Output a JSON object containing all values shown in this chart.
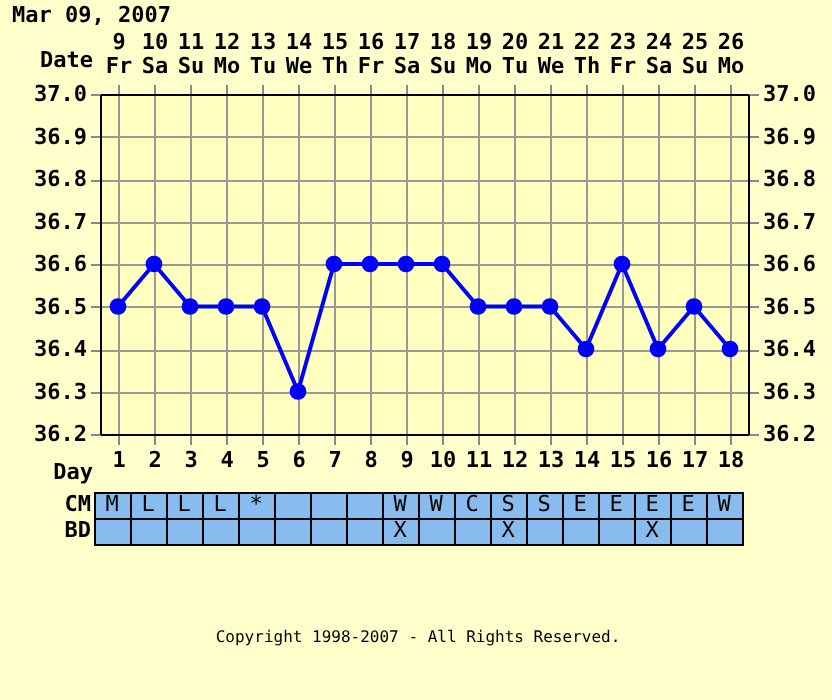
{
  "chart_data": [
    {
      "type": "line",
      "title": "Mar 09, 2007",
      "x": [
        1,
        2,
        3,
        4,
        5,
        6,
        7,
        8,
        9,
        10,
        11,
        12,
        13,
        14,
        15,
        16,
        17,
        18
      ],
      "values": [
        36.5,
        36.6,
        36.5,
        36.5,
        36.5,
        36.3,
        36.6,
        36.6,
        36.6,
        36.6,
        36.5,
        36.5,
        36.5,
        36.4,
        36.6,
        36.4,
        36.5,
        36.4
      ],
      "color": "#0000ff",
      "marker": "circle",
      "grid": true,
      "xlabel": "Day",
      "xlim": [
        0.5,
        18.5
      ],
      "xticks": [
        1,
        2,
        3,
        4,
        5,
        6,
        7,
        8,
        9,
        10,
        11,
        12,
        13,
        14,
        15,
        16,
        17,
        18
      ],
      "x2label": "Date",
      "x2lim": [
        "2007-03-08T12:00",
        "2007-03-26T12:00"
      ],
      "x2ticks": [
        {
          "value": "2007-03-09",
          "label": "9\nFr"
        },
        {
          "value": "2007-03-10",
          "label": "10\nSa"
        },
        {
          "value": "2007-03-11",
          "label": "11\nSu"
        },
        {
          "value": "2007-03-12",
          "label": "12\nMo"
        },
        {
          "value": "2007-03-13",
          "label": "13\nTu"
        },
        {
          "value": "2007-03-14",
          "label": "14\nWe"
        },
        {
          "value": "2007-03-15",
          "label": "15\nTh"
        },
        {
          "value": "2007-03-16",
          "label": "16\nFr"
        },
        {
          "value": "2007-03-17",
          "label": "17\nSa"
        },
        {
          "value": "2007-03-18",
          "label": "18\nSu"
        },
        {
          "value": "2007-03-19",
          "label": "19\nMo"
        },
        {
          "value": "2007-03-20",
          "label": "20\nTu"
        },
        {
          "value": "2007-03-21",
          "label": "21\nWe"
        },
        {
          "value": "2007-03-22",
          "label": "22\nTh"
        },
        {
          "value": "2007-03-23",
          "label": "23\nFr"
        },
        {
          "value": "2007-03-24",
          "label": "24\nSa"
        },
        {
          "value": "2007-03-25",
          "label": "25\nSu"
        },
        {
          "value": "2007-03-26",
          "label": "26\nMo"
        }
      ],
      "ylim": [
        36.2,
        37.0
      ],
      "yticks": [
        {
          "value": 36.2,
          "label": "36.2"
        },
        36.3,
        36.4,
        36.5,
        36.6,
        36.7,
        36.8,
        36.9,
        {
          "value": 37,
          "label": "37.0"
        }
      ],
      "y2lim": [
        36.2,
        37.0
      ],
      "y2ticks": [
        {
          "value": 36.2,
          "label": "36.2"
        },
        36.3,
        36.4,
        36.5,
        36.6,
        36.7,
        36.8,
        36.9,
        {
          "value": 37,
          "label": "37.0"
        }
      ]
    },
    {
      "type": "heatmap",
      "tick_labels": "y",
      "categories": [
        null,
        null,
        null,
        null,
        null,
        null,
        null,
        null,
        null,
        null,
        null,
        null,
        null,
        null,
        null,
        null,
        null,
        null
      ],
      "y_categories": [
        "CM",
        "BD"
      ],
      "cells": [
        [
          null,
          null,
          null,
          null,
          null,
          null,
          null,
          null,
          null,
          null,
          null,
          null,
          null,
          null,
          null,
          null,
          null,
          null
        ],
        [
          null,
          null,
          null,
          null,
          null,
          null,
          null,
          null,
          null,
          null,
          null,
          null,
          null,
          null,
          null,
          null,
          null,
          null
        ]
      ],
      "cell_labels": [
        [
          "M",
          "L",
          "L",
          "L",
          "*",
          null,
          null,
          null,
          "W",
          "W",
          "C",
          "S",
          "S",
          "E",
          "E",
          "E",
          "E",
          "W"
        ],
        [
          null,
          null,
          null,
          null,
          null,
          null,
          null,
          null,
          "X",
          null,
          null,
          "X",
          null,
          null,
          null,
          "X",
          null,
          null
        ]
      ],
      "annotations": [
        "Copyright 1998-2007 - All Rights Reserved."
      ]
    }
  ]
}
